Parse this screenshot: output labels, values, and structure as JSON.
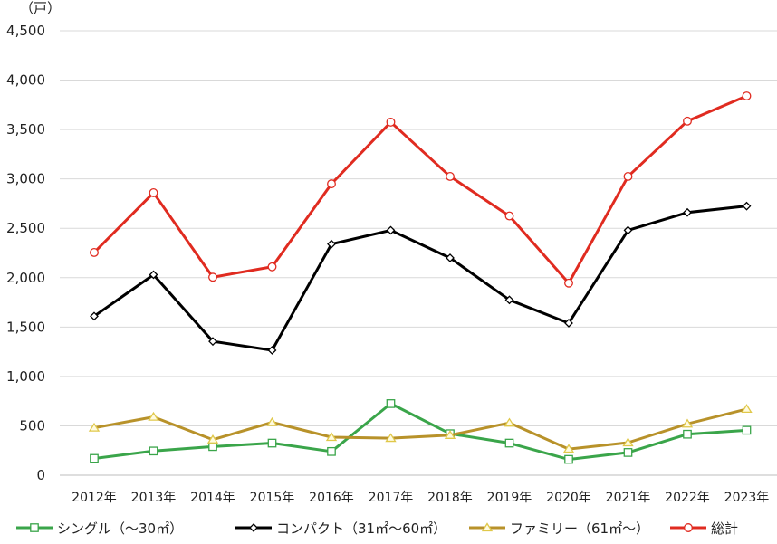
{
  "chart_data": {
    "type": "line",
    "unit_label": "（戸）",
    "categories": [
      "2012年",
      "2013年",
      "2014年",
      "2015年",
      "2016年",
      "2017年",
      "2018年",
      "2019年",
      "2020年",
      "2021年",
      "2022年",
      "2023年"
    ],
    "ylim": [
      0,
      4500
    ],
    "yticks": [
      0,
      500,
      1000,
      1500,
      2000,
      2500,
      3000,
      3500,
      4000,
      4500
    ],
    "ytick_labels": [
      "0",
      "500",
      "1,000",
      "1,500",
      "2,000",
      "2,500",
      "3,000",
      "3,500",
      "4,000",
      "4,500"
    ],
    "grid": "horizontal",
    "legend_position": "bottom",
    "series": [
      {
        "name": "シングル（～30㎡）",
        "color": "#3aa54a",
        "marker": "square",
        "values": [
          170,
          245,
          290,
          325,
          240,
          725,
          420,
          325,
          160,
          230,
          415,
          455
        ]
      },
      {
        "name": "コンパクト（31㎡～60㎡）",
        "color": "#000000",
        "marker": "diamond",
        "values": [
          1610,
          2030,
          1355,
          1265,
          2340,
          2480,
          2200,
          1775,
          1540,
          2480,
          2660,
          2725
        ]
      },
      {
        "name": "ファミリー（61㎡～）",
        "color": "#b8922a",
        "marker": "triangle",
        "values": [
          480,
          590,
          360,
          535,
          385,
          375,
          405,
          530,
          265,
          330,
          520,
          670
        ]
      },
      {
        "name": "総計",
        "color": "#e02b20",
        "marker": "circle",
        "values": [
          2255,
          2860,
          2005,
          2110,
          2950,
          3575,
          3025,
          2625,
          1945,
          3025,
          3585,
          3840
        ]
      }
    ]
  }
}
